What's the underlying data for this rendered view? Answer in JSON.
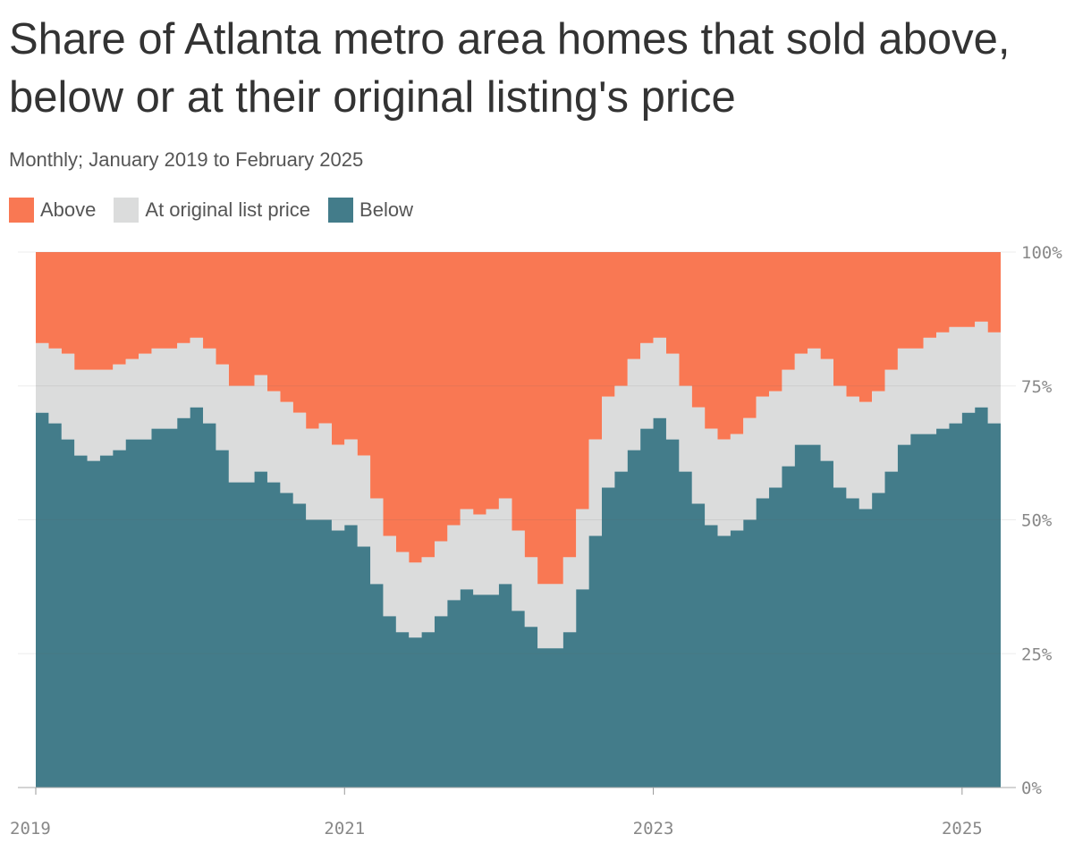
{
  "title": "Share of Atlanta metro area homes that sold above, below or at their original listing's price",
  "subtitle": "Monthly; January 2019 to February 2025",
  "legend": [
    {
      "label": "Above",
      "color": "#F97853"
    },
    {
      "label": "At original list price",
      "color": "#DBDCDC"
    },
    {
      "label": "Below",
      "color": "#437C8A"
    }
  ],
  "chart_data": {
    "type": "area",
    "stacked": true,
    "step": true,
    "x_start": "2019-01",
    "x_end": "2025-02",
    "x_ticks": [
      "2019",
      "2021",
      "2023",
      "2025"
    ],
    "y_ticks": [
      "0%",
      "25%",
      "50%",
      "75%",
      "100%"
    ],
    "ylim": [
      0,
      100
    ],
    "series": [
      {
        "name": "Below",
        "color": "#437C8A",
        "values": [
          70,
          68,
          65,
          62,
          61,
          62,
          63,
          65,
          65,
          67,
          67,
          69,
          71,
          68,
          63,
          57,
          57,
          59,
          57,
          55,
          53,
          50,
          50,
          48,
          49,
          45,
          38,
          32,
          29,
          28,
          29,
          32,
          35,
          37,
          36,
          36,
          38,
          33,
          30,
          26,
          26,
          29,
          37,
          47,
          56,
          59,
          63,
          67,
          69,
          65,
          59,
          53,
          49,
          47,
          48,
          50,
          54,
          56,
          60,
          64,
          64,
          61,
          56,
          54,
          52,
          55,
          59,
          64,
          66,
          66,
          67,
          68,
          70,
          71,
          68
        ]
      },
      {
        "name": "At original list price",
        "color": "#DBDCDC",
        "values": [
          13,
          14,
          16,
          16,
          17,
          16,
          16,
          15,
          16,
          15,
          15,
          14,
          13,
          14,
          16,
          18,
          18,
          18,
          17,
          17,
          17,
          17,
          18,
          16,
          16,
          17,
          16,
          15,
          15,
          14,
          14,
          14,
          14,
          15,
          15,
          16,
          16,
          15,
          13,
          12,
          12,
          14,
          15,
          18,
          17,
          16,
          17,
          16,
          15,
          16,
          16,
          18,
          18,
          18,
          18,
          19,
          19,
          18,
          18,
          17,
          18,
          19,
          19,
          19,
          20,
          19,
          19,
          18,
          16,
          18,
          18,
          18,
          16,
          16,
          17
        ]
      },
      {
        "name": "Above",
        "color": "#F97853",
        "values": [
          17,
          18,
          19,
          22,
          22,
          22,
          21,
          20,
          19,
          18,
          18,
          17,
          16,
          18,
          21,
          25,
          25,
          23,
          26,
          28,
          30,
          33,
          32,
          36,
          35,
          38,
          46,
          53,
          56,
          58,
          57,
          54,
          51,
          48,
          49,
          48,
          46,
          52,
          57,
          62,
          62,
          57,
          48,
          35,
          27,
          25,
          20,
          17,
          16,
          19,
          25,
          29,
          33,
          35,
          34,
          31,
          27,
          26,
          22,
          19,
          18,
          20,
          25,
          27,
          28,
          26,
          22,
          18,
          18,
          16,
          15,
          14,
          14,
          13,
          15
        ]
      }
    ]
  }
}
